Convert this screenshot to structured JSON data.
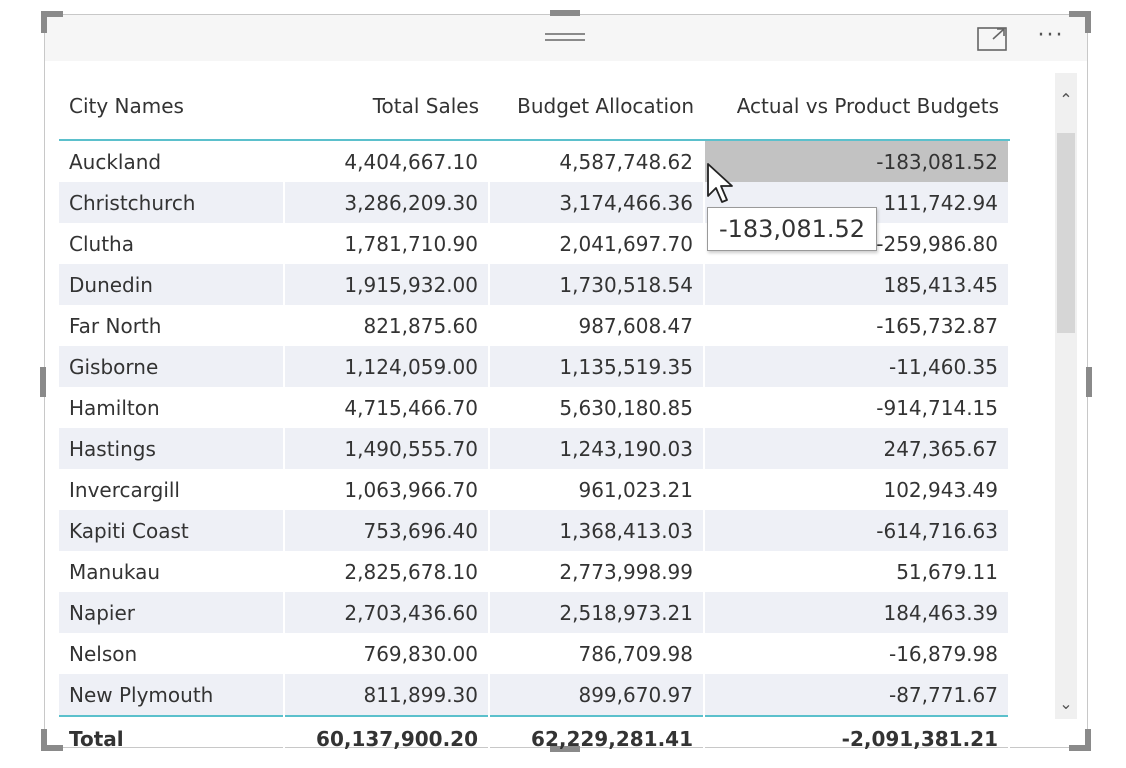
{
  "table": {
    "headers": {
      "city": "City Names",
      "sales": "Total Sales",
      "budget": "Budget Allocation",
      "variance": "Actual vs Product Budgets"
    },
    "rows": [
      {
        "city": "Auckland",
        "sales": "4,404,667.10",
        "budget": "4,587,748.62",
        "variance": "-183,081.52"
      },
      {
        "city": "Christchurch",
        "sales": "3,286,209.30",
        "budget": "3,174,466.36",
        "variance": "111,742.94"
      },
      {
        "city": "Clutha",
        "sales": "1,781,710.90",
        "budget": "2,041,697.70",
        "variance": "-259,986.80"
      },
      {
        "city": "Dunedin",
        "sales": "1,915,932.00",
        "budget": "1,730,518.54",
        "variance": "185,413.45"
      },
      {
        "city": "Far North",
        "sales": "821,875.60",
        "budget": "987,608.47",
        "variance": "-165,732.87"
      },
      {
        "city": "Gisborne",
        "sales": "1,124,059.00",
        "budget": "1,135,519.35",
        "variance": "-11,460.35"
      },
      {
        "city": "Hamilton",
        "sales": "4,715,466.70",
        "budget": "5,630,180.85",
        "variance": "-914,714.15"
      },
      {
        "city": "Hastings",
        "sales": "1,490,555.70",
        "budget": "1,243,190.03",
        "variance": "247,365.67"
      },
      {
        "city": "Invercargill",
        "sales": "1,063,966.70",
        "budget": "961,023.21",
        "variance": "102,943.49"
      },
      {
        "city": "Kapiti Coast",
        "sales": "753,696.40",
        "budget": "1,368,413.03",
        "variance": "-614,716.63"
      },
      {
        "city": "Manukau",
        "sales": "2,825,678.10",
        "budget": "2,773,998.99",
        "variance": "51,679.11"
      },
      {
        "city": "Napier",
        "sales": "2,703,436.60",
        "budget": "2,518,973.21",
        "variance": "184,463.39"
      },
      {
        "city": "Nelson",
        "sales": "769,830.00",
        "budget": "786,709.98",
        "variance": "-16,879.98"
      },
      {
        "city": "New Plymouth",
        "sales": "811,899.30",
        "budget": "899,670.97",
        "variance": "-87,771.67"
      }
    ],
    "total": {
      "label": "Total",
      "sales": "60,137,900.20",
      "budget": "62,229,281.41",
      "variance": "-2,091,381.21"
    }
  },
  "tooltip": {
    "value": "-183,081.52"
  },
  "icons": {
    "focus": "focus-mode-icon",
    "more": "more-options-icon",
    "drag": "drag-handle-icon",
    "scroll_up": "chevron-up-icon",
    "scroll_down": "chevron-down-icon"
  },
  "colors": {
    "accent": "#5bc0cc",
    "row_alt": "#eef0f6",
    "highlight": "#c2c2c2"
  }
}
